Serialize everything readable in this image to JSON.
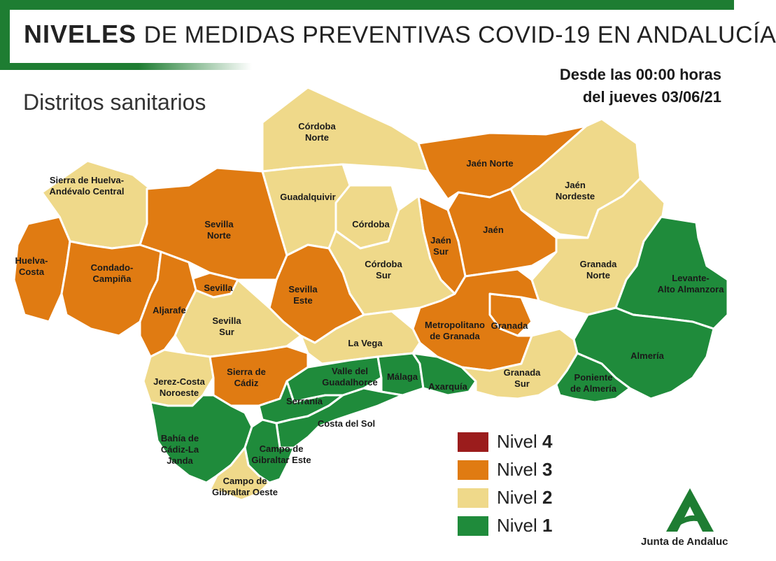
{
  "header": {
    "title_bold": "NIVELES",
    "title_rest": "DE MEDIDAS PREVENTIVAS COVID-19 EN ANDALUCÍA",
    "subtitle": "Distritos sanitarios",
    "date_line1": "Desde las 00:00 horas",
    "date_line2": "del jueves 03/06/21"
  },
  "colors": {
    "nivel_4": "#9b1c1c",
    "nivel_3": "#e07b12",
    "nivel_2": "#efd98a",
    "nivel_1": "#1f8b3b",
    "brand_green": "#1e7d32"
  },
  "legend": [
    {
      "prefix": "Nivel",
      "number": "4",
      "color": "#9b1c1c"
    },
    {
      "prefix": "Nivel",
      "number": "3",
      "color": "#e07b12"
    },
    {
      "prefix": "Nivel",
      "number": "2",
      "color": "#efd98a"
    },
    {
      "prefix": "Nivel",
      "number": "1",
      "color": "#1f8b3b"
    }
  ],
  "districts": [
    {
      "id": "cordoba-norte",
      "lines": [
        "Córdoba",
        "Norte"
      ],
      "level": 2
    },
    {
      "id": "jaen-norte",
      "lines": [
        "Jaén Norte"
      ],
      "level": 3
    },
    {
      "id": "jaen-nordeste",
      "lines": [
        "Jaén",
        "Nordeste"
      ],
      "level": 2
    },
    {
      "id": "sierra-huelva",
      "lines": [
        "Sierra de Huelva-",
        "Andévalo Central"
      ],
      "level": 2
    },
    {
      "id": "guadalquivir",
      "lines": [
        "Guadalquivir"
      ],
      "level": 2
    },
    {
      "id": "cordoba",
      "lines": [
        "Córdoba"
      ],
      "level": 2
    },
    {
      "id": "sevilla-norte",
      "lines": [
        "Sevilla",
        "Norte"
      ],
      "level": 3
    },
    {
      "id": "jaen",
      "lines": [
        "Jaén"
      ],
      "level": 3
    },
    {
      "id": "jaen-sur",
      "lines": [
        "Jaén",
        "Sur"
      ],
      "level": 3
    },
    {
      "id": "huelva-costa",
      "lines": [
        "Huelva-",
        "Costa"
      ],
      "level": 3
    },
    {
      "id": "condado-campina",
      "lines": [
        "Condado-",
        "Campiña"
      ],
      "level": 3
    },
    {
      "id": "cordoba-sur",
      "lines": [
        "Córdoba",
        "Sur"
      ],
      "level": 2
    },
    {
      "id": "granada-norte",
      "lines": [
        "Granada",
        "Norte"
      ],
      "level": 2
    },
    {
      "id": "sevilla",
      "lines": [
        "Sevilla"
      ],
      "level": 3
    },
    {
      "id": "levante",
      "lines": [
        "Levante-",
        "Alto Almanzora"
      ],
      "level": 1
    },
    {
      "id": "aljarafe",
      "lines": [
        "Aljarafe"
      ],
      "level": 3
    },
    {
      "id": "sevilla-este",
      "lines": [
        "Sevilla",
        "Este"
      ],
      "level": 3
    },
    {
      "id": "sevilla-sur",
      "lines": [
        "Sevilla",
        "Sur"
      ],
      "level": 2
    },
    {
      "id": "granada",
      "lines": [
        "Granada"
      ],
      "level": 3
    },
    {
      "id": "metropolitano-granada",
      "lines": [
        "Metropolitano",
        "de Granada"
      ],
      "level": 3
    },
    {
      "id": "la-vega",
      "lines": [
        "La Vega"
      ],
      "level": 2
    },
    {
      "id": "almeria",
      "lines": [
        "Almería"
      ],
      "level": 1
    },
    {
      "id": "jerez-costa-noroeste",
      "lines": [
        "Jerez-Costa",
        "Noroeste"
      ],
      "level": 2
    },
    {
      "id": "sierra-cadiz",
      "lines": [
        "Sierra de",
        "Cádiz"
      ],
      "level": 3
    },
    {
      "id": "valle-guadalhorce",
      "lines": [
        "Valle del",
        "Guadalhorce"
      ],
      "level": 1
    },
    {
      "id": "malaga",
      "lines": [
        "Málaga"
      ],
      "level": 1
    },
    {
      "id": "axarquia",
      "lines": [
        "Axarquía"
      ],
      "level": 1
    },
    {
      "id": "granada-sur",
      "lines": [
        "Granada",
        "Sur"
      ],
      "level": 2
    },
    {
      "id": "poniente-almeria",
      "lines": [
        "Poniente",
        "de Almería"
      ],
      "level": 1
    },
    {
      "id": "serrania",
      "lines": [
        "Serranía"
      ],
      "level": 1
    },
    {
      "id": "costa-del-sol",
      "lines": [
        "Costa del Sol"
      ],
      "level": 1
    },
    {
      "id": "bahia-cadiz",
      "lines": [
        "Bahía de",
        "Cádiz-La",
        "Janda"
      ],
      "level": 1
    },
    {
      "id": "campo-gibraltar-este",
      "lines": [
        "Campo de",
        "Gibraltar Este"
      ],
      "level": 1
    },
    {
      "id": "campo-gibraltar-oeste",
      "lines": [
        "Campo de",
        "Gibraltar Oeste"
      ],
      "level": 2
    }
  ],
  "logo": {
    "icon": "junta-andalucia-a-logo",
    "text": "Junta de Andaluc"
  }
}
